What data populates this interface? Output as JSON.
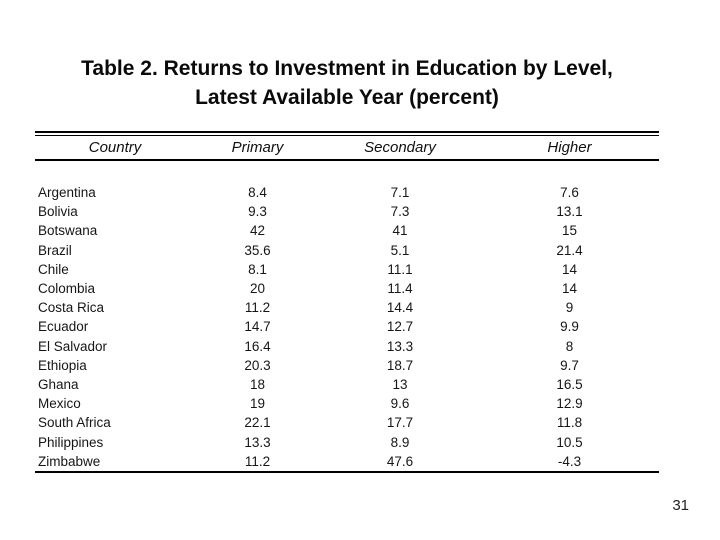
{
  "slide": {
    "title_line1": "Table 2. Returns to Investment in Education by Level,",
    "title_line2": "Latest Available Year (percent)",
    "page_number": "31"
  },
  "table": {
    "columns": [
      "Country",
      "Primary",
      "Secondary",
      "Higher"
    ],
    "rows": [
      {
        "country": "Argentina",
        "primary": "8.4",
        "secondary": "7.1",
        "higher": "7.6"
      },
      {
        "country": "Bolivia",
        "primary": "9.3",
        "secondary": "7.3",
        "higher": "13.1"
      },
      {
        "country": "Botswana",
        "primary": "42",
        "secondary": "41",
        "higher": "15"
      },
      {
        "country": "Brazil",
        "primary": "35.6",
        "secondary": "5.1",
        "higher": "21.4"
      },
      {
        "country": "Chile",
        "primary": "8.1",
        "secondary": "11.1",
        "higher": "14"
      },
      {
        "country": "Colombia",
        "primary": "20",
        "secondary": "11.4",
        "higher": "14"
      },
      {
        "country": "Costa Rica",
        "primary": "11.2",
        "secondary": "14.4",
        "higher": "9"
      },
      {
        "country": "Ecuador",
        "primary": "14.7",
        "secondary": "12.7",
        "higher": "9.9"
      },
      {
        "country": "El Salvador",
        "primary": "16.4",
        "secondary": "13.3",
        "higher": "8"
      },
      {
        "country": "Ethiopia",
        "primary": "20.3",
        "secondary": "18.7",
        "higher": "9.7"
      },
      {
        "country": "Ghana",
        "primary": "18",
        "secondary": "13",
        "higher": "16.5"
      },
      {
        "country": "Mexico",
        "primary": "19",
        "secondary": "9.6",
        "higher": "12.9"
      },
      {
        "country": "South Africa",
        "primary": "22.1",
        "secondary": "17.7",
        "higher": "11.8"
      },
      {
        "country": "Philippines",
        "primary": "13.3",
        "secondary": "8.9",
        "higher": "10.5"
      },
      {
        "country": "Zimbabwe",
        "primary": "11.2",
        "secondary": "47.6",
        "higher": "-4.3"
      }
    ]
  },
  "chart_data": {
    "type": "table",
    "title": "Table 2. Returns to Investment in Education by Level, Latest Available Year (percent)",
    "columns": [
      "Country",
      "Primary",
      "Secondary",
      "Higher"
    ],
    "categories": [
      "Argentina",
      "Bolivia",
      "Botswana",
      "Brazil",
      "Chile",
      "Colombia",
      "Costa Rica",
      "Ecuador",
      "El Salvador",
      "Ethiopia",
      "Ghana",
      "Mexico",
      "South Africa",
      "Philippines",
      "Zimbabwe"
    ],
    "series": [
      {
        "name": "Primary",
        "values": [
          8.4,
          9.3,
          42,
          35.6,
          8.1,
          20,
          11.2,
          14.7,
          16.4,
          20.3,
          18,
          19,
          22.1,
          13.3,
          11.2
        ]
      },
      {
        "name": "Secondary",
        "values": [
          7.1,
          7.3,
          41,
          5.1,
          11.1,
          11.4,
          14.4,
          12.7,
          13.3,
          18.7,
          13,
          9.6,
          17.7,
          8.9,
          47.6
        ]
      },
      {
        "name": "Higher",
        "values": [
          7.6,
          13.1,
          15,
          21.4,
          14,
          14,
          9,
          9.9,
          8,
          9.7,
          16.5,
          12.9,
          11.8,
          10.5,
          -4.3
        ]
      }
    ]
  },
  "colors": {
    "background": "#ffffff",
    "text": "#111111",
    "rule": "#000000"
  }
}
